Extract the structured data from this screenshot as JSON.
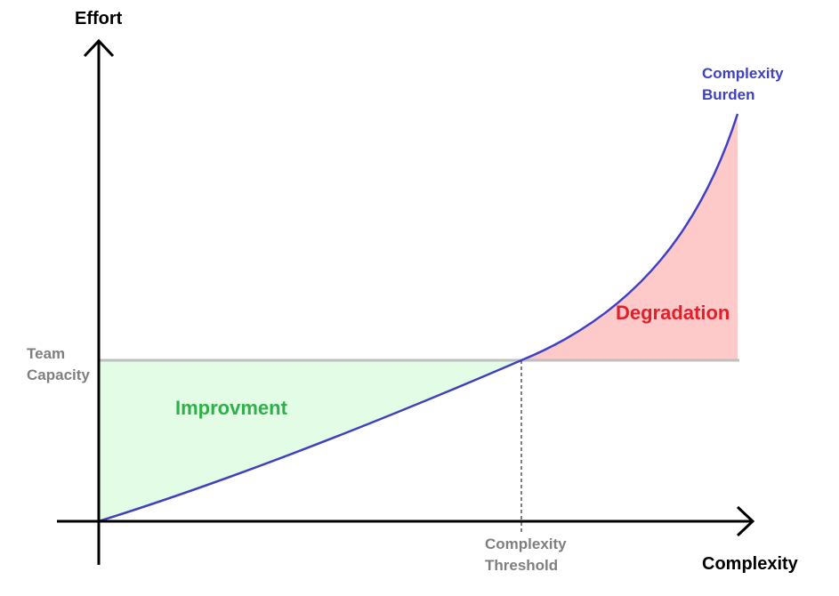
{
  "axes": {
    "y_title": "Effort",
    "x_title": "Complexity"
  },
  "curve": {
    "label_line1": "Complexity",
    "label_line2": "Burden"
  },
  "capacity": {
    "label_line1": "Team",
    "label_line2": "Capacity"
  },
  "threshold": {
    "label_line1": "Complexity",
    "label_line2": "Threshold"
  },
  "regions": {
    "below": "Improvment",
    "above": "Degradation"
  },
  "colors": {
    "axis": "#000000",
    "curve": "#4040c0",
    "capacity_line": "#bfbfbf",
    "improvement_fill": "#e2fce5",
    "improvement_text": "#2fb04a",
    "degradation_fill": "#fdc9c9",
    "degradation_text": "#e3202a",
    "reference_text": "#7f7f7f"
  }
}
